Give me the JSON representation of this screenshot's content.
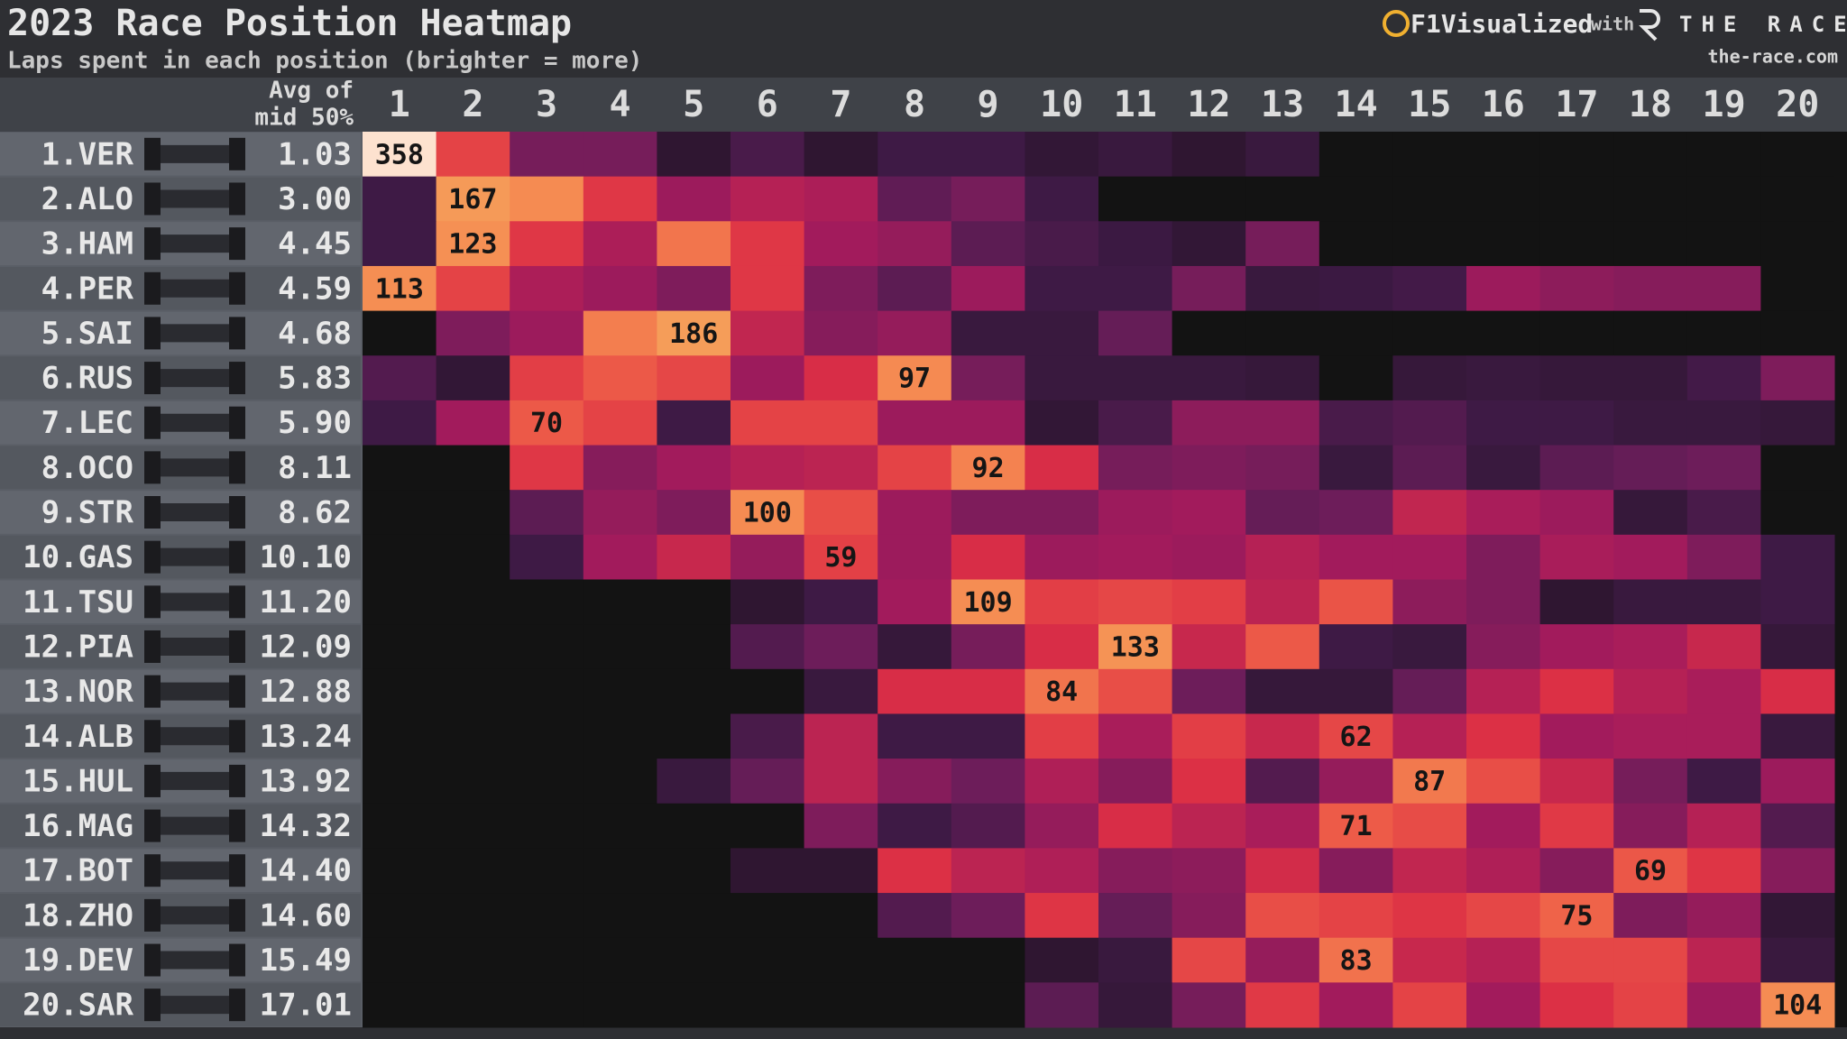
{
  "chart_data": {
    "type": "heatmap",
    "title": "2023 Race Position Heatmap",
    "subtitle": "Laps spent in each position (brighter = more)",
    "brand": "F1Visualized",
    "brand_with": "with",
    "partner": "THE RACE",
    "partner_url": "the-race.com",
    "avg_header": [
      "Avg of",
      "mid 50%"
    ],
    "categories": [
      1,
      2,
      3,
      4,
      5,
      6,
      7,
      8,
      9,
      10,
      11,
      12,
      13,
      14,
      15,
      16,
      17,
      18,
      19,
      20
    ],
    "rows": [
      "1.VER",
      "2.ALO",
      "3.HAM",
      "4.PER",
      "5.SAI",
      "6.RUS",
      "7.LEC",
      "8.OCO",
      "9.STR",
      "10.GAS",
      "11.TSU",
      "12.PIA",
      "13.NOR",
      "14.ALB",
      "15.HUL",
      "16.MAG",
      "17.BOT",
      "18.ZHO",
      "19.DEV",
      "20.SAR"
    ],
    "avg": [
      "1.03",
      "3.00",
      "4.45",
      "4.59",
      "4.68",
      "5.83",
      "5.90",
      "8.11",
      "8.62",
      "10.10",
      "11.20",
      "12.09",
      "12.88",
      "13.24",
      "13.92",
      "14.32",
      "14.40",
      "14.60",
      "15.49",
      "17.01"
    ],
    "values": [
      [
        358,
        60,
        20,
        20,
        3,
        10,
        3,
        8,
        8,
        4,
        6,
        3,
        6,
        0,
        0,
        0,
        0,
        0,
        0,
        0
      ],
      [
        8,
        167,
        100,
        55,
        30,
        38,
        35,
        15,
        20,
        8,
        0,
        0,
        0,
        0,
        0,
        0,
        0,
        0,
        0,
        0
      ],
      [
        8,
        123,
        55,
        35,
        85,
        55,
        32,
        28,
        14,
        10,
        7,
        4,
        20,
        0,
        0,
        0,
        0,
        0,
        0,
        0
      ],
      [
        113,
        60,
        35,
        30,
        22,
        55,
        22,
        14,
        30,
        8,
        8,
        20,
        6,
        7,
        9,
        30,
        26,
        24,
        24,
        0
      ],
      [
        0,
        22,
        30,
        90,
        186,
        42,
        24,
        28,
        6,
        6,
        16,
        0,
        0,
        0,
        0,
        0,
        0,
        0,
        0,
        0
      ],
      [
        12,
        4,
        58,
        70,
        62,
        30,
        50,
        97,
        20,
        6,
        6,
        6,
        5,
        0,
        5,
        6,
        5,
        5,
        9,
        22
      ],
      [
        8,
        32,
        70,
        60,
        8,
        60,
        60,
        30,
        30,
        4,
        10,
        26,
        26,
        10,
        12,
        8,
        8,
        6,
        6,
        5
      ],
      [
        0,
        0,
        55,
        24,
        32,
        38,
        40,
        60,
        92,
        50,
        20,
        22,
        20,
        6,
        14,
        6,
        14,
        16,
        18,
        0
      ],
      [
        0,
        0,
        14,
        28,
        22,
        100,
        65,
        30,
        22,
        22,
        30,
        32,
        16,
        18,
        42,
        34,
        30,
        5,
        10,
        0
      ],
      [
        0,
        0,
        8,
        32,
        44,
        28,
        59,
        30,
        50,
        30,
        32,
        30,
        38,
        32,
        32,
        22,
        34,
        32,
        22,
        8
      ],
      [
        0,
        0,
        0,
        0,
        0,
        3,
        8,
        32,
        109,
        58,
        62,
        58,
        40,
        68,
        26,
        22,
        3,
        6,
        6,
        8
      ],
      [
        0,
        0,
        0,
        0,
        0,
        12,
        18,
        5,
        20,
        50,
        133,
        44,
        70,
        8,
        6,
        24,
        32,
        34,
        44,
        5
      ],
      [
        0,
        0,
        0,
        0,
        0,
        0,
        6,
        50,
        50,
        84,
        65,
        18,
        5,
        5,
        16,
        38,
        52,
        38,
        34,
        50
      ],
      [
        0,
        0,
        0,
        0,
        0,
        10,
        40,
        8,
        8,
        58,
        34,
        58,
        44,
        62,
        38,
        52,
        32,
        34,
        34,
        6
      ],
      [
        0,
        0,
        0,
        0,
        6,
        16,
        40,
        24,
        18,
        36,
        24,
        52,
        12,
        28,
        87,
        65,
        44,
        20,
        8,
        30
      ],
      [
        0,
        0,
        0,
        0,
        0,
        0,
        22,
        8,
        12,
        28,
        50,
        40,
        34,
        71,
        64,
        32,
        56,
        24,
        38,
        12
      ],
      [
        0,
        0,
        0,
        0,
        0,
        3,
        3,
        52,
        40,
        36,
        24,
        26,
        48,
        24,
        42,
        36,
        24,
        69,
        54,
        24
      ],
      [
        0,
        0,
        0,
        0,
        0,
        0,
        0,
        12,
        18,
        54,
        16,
        24,
        65,
        60,
        54,
        62,
        75,
        22,
        28,
        4
      ],
      [
        0,
        0,
        0,
        0,
        0,
        0,
        0,
        0,
        0,
        3,
        6,
        62,
        28,
        83,
        44,
        38,
        62,
        62,
        40,
        6
      ],
      [
        0,
        0,
        0,
        0,
        0,
        0,
        0,
        0,
        0,
        14,
        5,
        20,
        56,
        32,
        60,
        32,
        52,
        60,
        30,
        104
      ]
    ],
    "clim": [
      0,
      358
    ],
    "color_norm": "sqrt",
    "color_stops": [
      [
        0,
        "#131313"
      ],
      [
        0.05,
        "#241423"
      ],
      [
        0.15,
        "#3e1a45"
      ],
      [
        0.22,
        "#6a1d5a"
      ],
      [
        0.3,
        "#a31b5c"
      ],
      [
        0.38,
        "#dc2f45"
      ],
      [
        0.45,
        "#ee5e48"
      ],
      [
        0.52,
        "#f58a52"
      ],
      [
        0.75,
        "#f5a05a"
      ],
      [
        1,
        "#fde2cf"
      ]
    ]
  }
}
